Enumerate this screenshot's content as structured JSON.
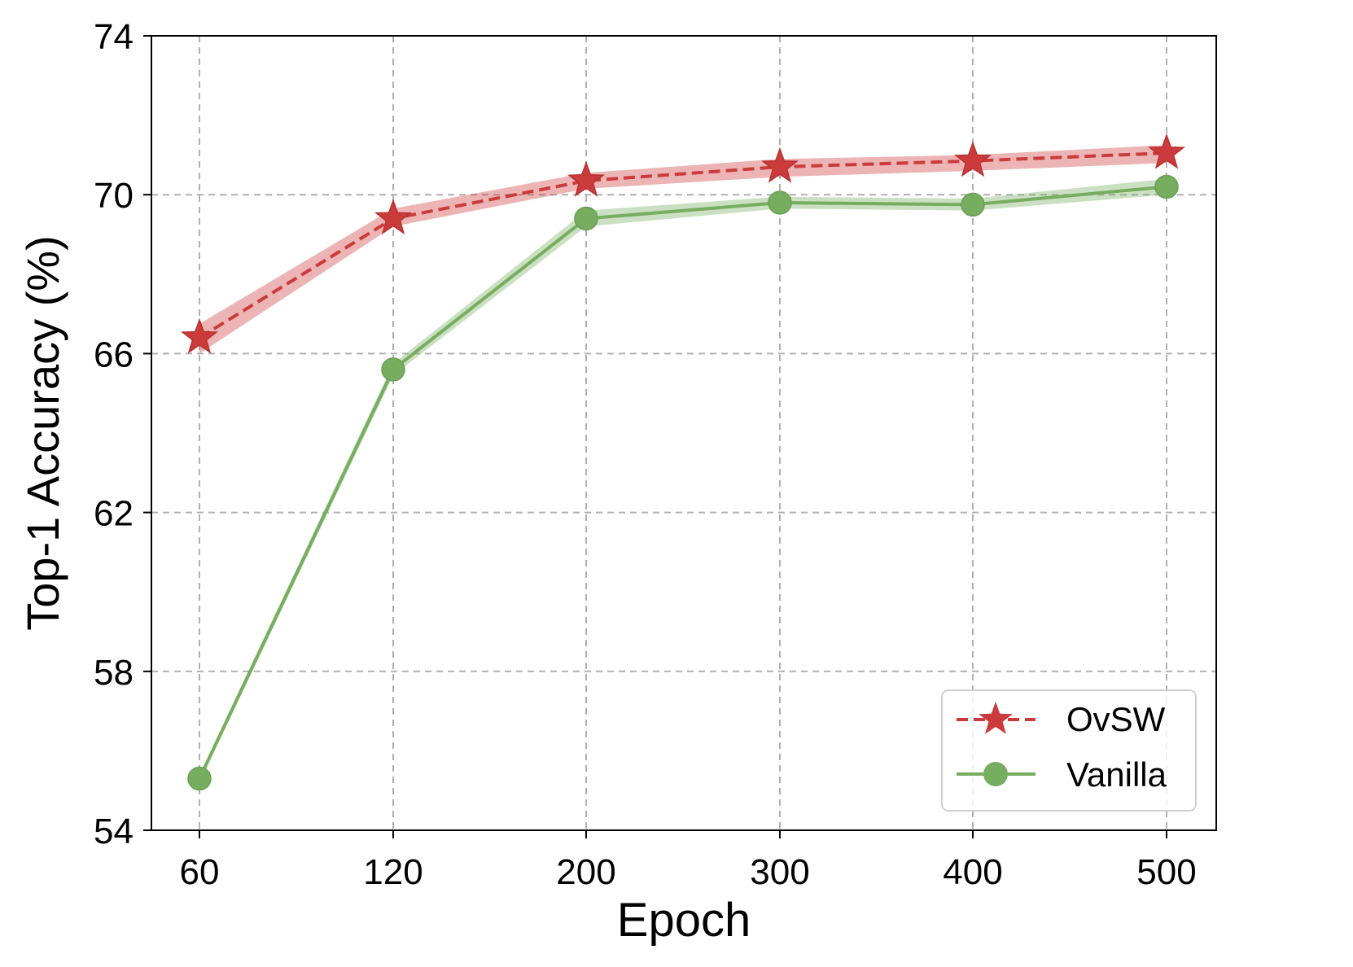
{
  "chart_data": {
    "type": "line",
    "title": "",
    "xlabel": "Epoch",
    "ylabel": "Top-1 Accuracy (%)",
    "categories": [
      "60",
      "120",
      "200",
      "300",
      "400",
      "500"
    ],
    "ylim": [
      54,
      74
    ],
    "yticks": [
      "54",
      "58",
      "62",
      "66",
      "70",
      "74"
    ],
    "grid": true,
    "legend_position": "bottom-right",
    "series": [
      {
        "name": "OvSW",
        "values": [
          66.4,
          69.4,
          70.35,
          70.7,
          70.85,
          71.05
        ],
        "band_lower": [
          66.0,
          69.2,
          70.15,
          70.45,
          70.6,
          70.8
        ],
        "band_upper": [
          66.75,
          69.65,
          70.55,
          70.9,
          71.0,
          71.25
        ],
        "color": "#cc3b3b",
        "line_style": "dashed",
        "marker": "star"
      },
      {
        "name": "Vanilla",
        "values": [
          55.3,
          65.6,
          69.4,
          69.8,
          69.75,
          70.2
        ],
        "band_lower": [
          55.2,
          65.45,
          69.2,
          69.65,
          69.6,
          70.0
        ],
        "band_upper": [
          55.4,
          65.75,
          69.6,
          69.95,
          69.9,
          70.4
        ],
        "color": "#77ad5e",
        "line_style": "solid",
        "marker": "circle"
      }
    ]
  }
}
